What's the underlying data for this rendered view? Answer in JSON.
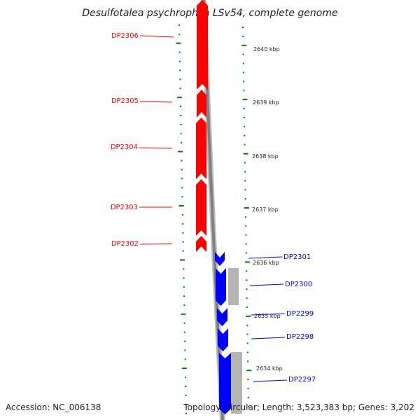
{
  "title": "Desulfotalea psychrophila LSv54, complete genome",
  "footer": {
    "accession": "Accession: NC_006138",
    "summary": "Topology: circular; Length: 3,523,383 bp; Genes: 3,202"
  },
  "colors": {
    "forward_strand": "#ff0000",
    "reverse_strand": "#0000ff",
    "gray_feature": "#b4b4b4",
    "tick": "#008000",
    "backbone": "#808080"
  },
  "scale_labels": [
    "2640 kbp",
    "2639 kbp",
    "2638 kbp",
    "2637 kbp",
    "2636 kbp",
    "2635 kbp",
    "2634 kbp"
  ],
  "genes": [
    {
      "name": "DP2306",
      "strand": "forward"
    },
    {
      "name": "DP2305",
      "strand": "forward"
    },
    {
      "name": "DP2304",
      "strand": "forward"
    },
    {
      "name": "DP2303",
      "strand": "forward"
    },
    {
      "name": "DP2302",
      "strand": "forward"
    },
    {
      "name": "DP2301",
      "strand": "reverse"
    },
    {
      "name": "DP2300",
      "strand": "reverse"
    },
    {
      "name": "DP2299",
      "strand": "reverse"
    },
    {
      "name": "DP2298",
      "strand": "reverse"
    },
    {
      "name": "DP2297",
      "strand": "reverse"
    }
  ]
}
